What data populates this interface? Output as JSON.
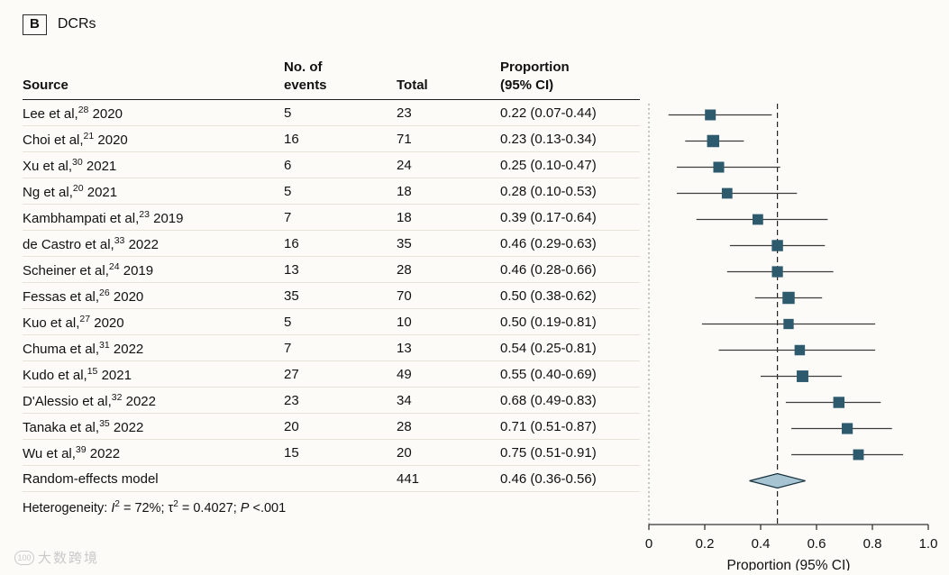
{
  "panel": {
    "label": "B",
    "title": "DCRs"
  },
  "table": {
    "headers": {
      "source": "Source",
      "events": [
        "No. of",
        "events"
      ],
      "total": "Total",
      "proportion": [
        "Proportion",
        "(95% CI)"
      ]
    }
  },
  "chart_data": {
    "type": "forest",
    "xlabel": "Proportion (95% CI)",
    "xlim": [
      0,
      1.0
    ],
    "xticks": [
      0,
      0.2,
      0.4,
      0.6,
      0.8,
      1.0
    ],
    "xtick_labels": [
      "0",
      "0.2",
      "0.4",
      "0.6",
      "0.8",
      "1.0"
    ],
    "dashed_line_x": 0.46,
    "studies": [
      {
        "author": "Lee et al,",
        "ref": "28",
        "year": "2020",
        "events": 5,
        "total": 23,
        "proportion_text": "0.22 (0.07-0.44)",
        "est": 0.22,
        "lo": 0.07,
        "hi": 0.44
      },
      {
        "author": "Choi et al,",
        "ref": "21",
        "year": "2020",
        "events": 16,
        "total": 71,
        "proportion_text": "0.23 (0.13-0.34)",
        "est": 0.23,
        "lo": 0.13,
        "hi": 0.34
      },
      {
        "author": "Xu et al,",
        "ref": "30",
        "year": "2021",
        "events": 6,
        "total": 24,
        "proportion_text": "0.25 (0.10-0.47)",
        "est": 0.25,
        "lo": 0.1,
        "hi": 0.47
      },
      {
        "author": "Ng et al,",
        "ref": "20",
        "year": "2021",
        "events": 5,
        "total": 18,
        "proportion_text": "0.28 (0.10-0.53)",
        "est": 0.28,
        "lo": 0.1,
        "hi": 0.53
      },
      {
        "author": "Kambhampati et al,",
        "ref": "23",
        "year": "2019",
        "events": 7,
        "total": 18,
        "proportion_text": "0.39 (0.17-0.64)",
        "est": 0.39,
        "lo": 0.17,
        "hi": 0.64
      },
      {
        "author": "de Castro et al,",
        "ref": "33",
        "year": "2022",
        "events": 16,
        "total": 35,
        "proportion_text": "0.46 (0.29-0.63)",
        "est": 0.46,
        "lo": 0.29,
        "hi": 0.63
      },
      {
        "author": "Scheiner et al,",
        "ref": "24",
        "year": "2019",
        "events": 13,
        "total": 28,
        "proportion_text": "0.46 (0.28-0.66)",
        "est": 0.46,
        "lo": 0.28,
        "hi": 0.66
      },
      {
        "author": "Fessas et al,",
        "ref": "26",
        "year": "2020",
        "events": 35,
        "total": 70,
        "proportion_text": "0.50 (0.38-0.62)",
        "est": 0.5,
        "lo": 0.38,
        "hi": 0.62
      },
      {
        "author": "Kuo et al,",
        "ref": "27",
        "year": "2020",
        "events": 5,
        "total": 10,
        "proportion_text": "0.50 (0.19-0.81)",
        "est": 0.5,
        "lo": 0.19,
        "hi": 0.81
      },
      {
        "author": "Chuma et al,",
        "ref": "31",
        "year": "2022",
        "events": 7,
        "total": 13,
        "proportion_text": "0.54 (0.25-0.81)",
        "est": 0.54,
        "lo": 0.25,
        "hi": 0.81
      },
      {
        "author": "Kudo et al,",
        "ref": "15",
        "year": "2021",
        "events": 27,
        "total": 49,
        "proportion_text": "0.55 (0.40-0.69)",
        "est": 0.55,
        "lo": 0.4,
        "hi": 0.69
      },
      {
        "author": "D'Alessio et al,",
        "ref": "32",
        "year": "2022",
        "events": 23,
        "total": 34,
        "proportion_text": "0.68 (0.49-0.83)",
        "est": 0.68,
        "lo": 0.49,
        "hi": 0.83
      },
      {
        "author": "Tanaka et al,",
        "ref": "35",
        "year": "2022",
        "events": 20,
        "total": 28,
        "proportion_text": "0.71 (0.51-0.87)",
        "est": 0.71,
        "lo": 0.51,
        "hi": 0.87
      },
      {
        "author": "Wu et al,",
        "ref": "39",
        "year": "2022",
        "events": 15,
        "total": 20,
        "proportion_text": "0.75 (0.51-0.91)",
        "est": 0.75,
        "lo": 0.51,
        "hi": 0.91
      }
    ],
    "pooled": {
      "label": "Random-effects model",
      "events": null,
      "total": 441,
      "proportion_text": "0.46 (0.36-0.56)",
      "est": 0.46,
      "lo": 0.36,
      "hi": 0.56
    },
    "footnote_segments": [
      {
        "t": "Heterogeneity: "
      },
      {
        "t": "I",
        "i": true
      },
      {
        "t": "2",
        "sup": true
      },
      {
        "t": " = 72%; τ"
      },
      {
        "t": "2",
        "sup": true
      },
      {
        "t": " = 0.4027; "
      },
      {
        "t": "P",
        "i": true
      },
      {
        "t": " <.001"
      }
    ]
  },
  "colors": {
    "square": "#2e5a6e",
    "ci_line": "#3c3c3c",
    "diamond_fill": "#a7c4d2",
    "diamond_stroke": "#16323e",
    "dashed_line": "#222222",
    "dotted_line": "#888888",
    "axis": "#333333",
    "row_separator": "#e8e3d8"
  },
  "watermark": {
    "icon_text": "100",
    "text": "大数跨境"
  }
}
